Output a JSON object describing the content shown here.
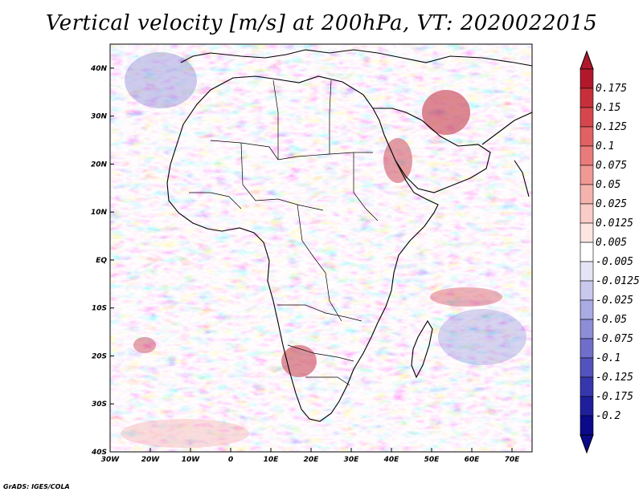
{
  "title": "Vertical velocity [m/s] at 200hPa, VT: 2020022015",
  "credit": "GrADS: IGES/COLA",
  "map": {
    "lon_range": [
      -30,
      75
    ],
    "lat_range": [
      -40,
      45
    ],
    "lon_ticks": [
      "30W",
      "20W",
      "10W",
      "0",
      "10E",
      "20E",
      "30E",
      "40E",
      "50E",
      "60E",
      "70E"
    ],
    "lat_ticks": [
      "40N",
      "30N",
      "20N",
      "10N",
      "EQ",
      "10S",
      "20S",
      "30S",
      "40S"
    ]
  },
  "colorbar": {
    "labels": [
      "0.175",
      "0.15",
      "0.125",
      "0.1",
      "0.075",
      "0.05",
      "0.025",
      "0.0125",
      "0.005",
      "-0.005",
      "-0.0125",
      "-0.025",
      "-0.05",
      "-0.075",
      "-0.1",
      "-0.125",
      "-0.175",
      "-0.2"
    ],
    "colors": [
      "#b2182b",
      "#c7303a",
      "#d6474d",
      "#e06262",
      "#e97c7a",
      "#f09894",
      "#f5b3ae",
      "#f9ccc7",
      "#fde6e2",
      "#ffffff",
      "#e4e4f6",
      "#c9c9ee",
      "#ababe4",
      "#8d8dd8",
      "#6f6fcb",
      "#5353bd",
      "#3737ad",
      "#1f1f9c",
      "#0a0a8a"
    ]
  }
}
